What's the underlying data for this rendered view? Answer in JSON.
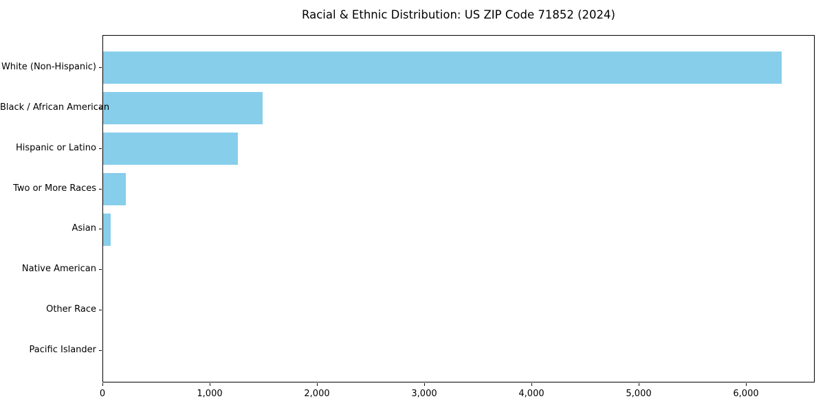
{
  "chart_data": {
    "type": "bar",
    "orientation": "horizontal",
    "title": "Racial & Ethnic Distribution: US ZIP Code 71852 (2024)",
    "categories": [
      "White (Non-Hispanic)",
      "Black / African American",
      "Hispanic or Latino",
      "Two or More Races",
      "Asian",
      "Native American",
      "Other Race",
      "Pacific Islander"
    ],
    "values": [
      6327,
      1485,
      1256,
      213,
      70,
      0,
      0,
      0
    ],
    "xlabel": "",
    "ylabel": "",
    "xlim": [
      0,
      6640
    ],
    "x_ticks": [
      0,
      1000,
      2000,
      3000,
      4000,
      5000,
      6000
    ],
    "x_tick_labels": [
      "0",
      "1,000",
      "2,000",
      "3,000",
      "4,000",
      "5,000",
      "6,000"
    ],
    "bar_color": "#87CEEB",
    "text_color": "#000000",
    "background_color": "#ffffff",
    "grid": false,
    "legend": false
  }
}
